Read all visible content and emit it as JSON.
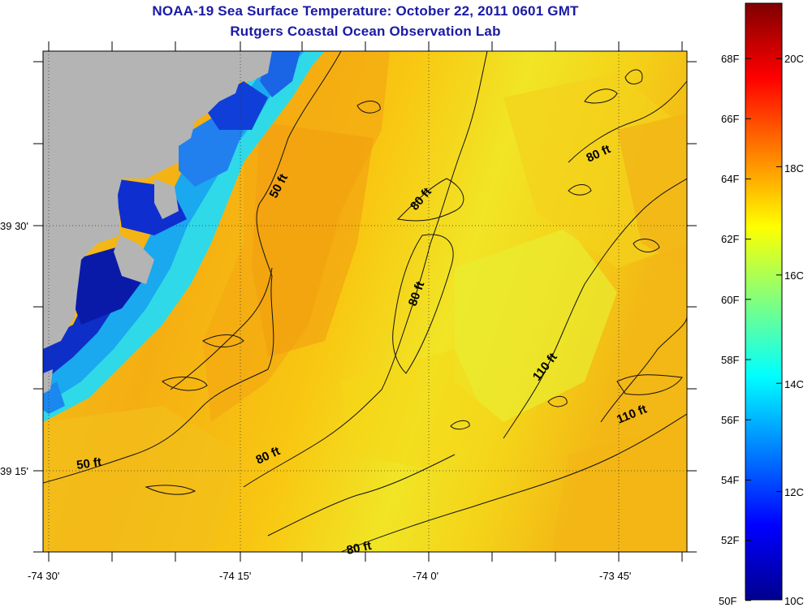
{
  "title": "NOAA-19 Sea Surface Temperature:  October 22, 2011 0601 GMT",
  "subtitle": "Rutgers Coastal Ocean Observation Lab",
  "map": {
    "lon_labels": [
      "-74 30'",
      "-74 15'",
      "-74 0'",
      "-73 45'"
    ],
    "lat_labels": [
      "39 30'",
      "39 15'"
    ],
    "contour_labels": [
      "50 ft",
      "50 ft",
      "80 ft",
      "80 ft",
      "80 ft",
      "80 ft",
      "80 ft",
      "110 ft",
      "110 ft"
    ],
    "land_color": "#b4b4b4"
  },
  "colorbar": {
    "f_labels": [
      "68F",
      "66F",
      "64F",
      "62F",
      "60F",
      "58F",
      "56F",
      "54F",
      "52F",
      "50F"
    ],
    "c_labels": [
      "20C",
      "18C",
      "16C",
      "14C",
      "12C",
      "10C"
    ],
    "colormap": "jet"
  }
}
